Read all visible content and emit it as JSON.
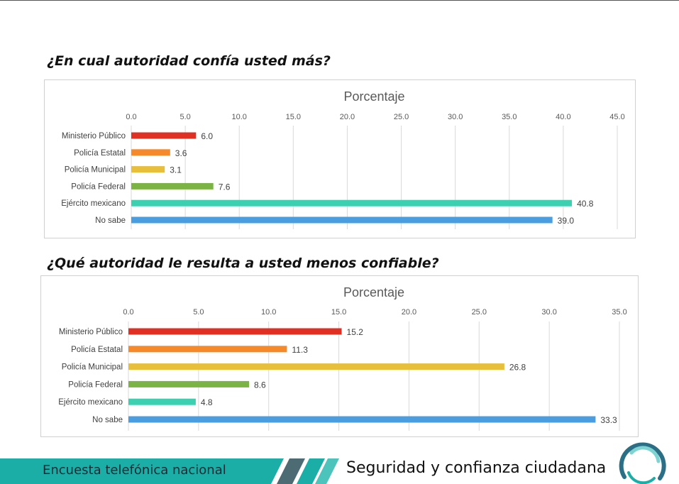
{
  "chart_data": [
    {
      "type": "bar",
      "orientation": "horizontal",
      "question": "¿En cual autoridad confía usted más?",
      "title": "Porcentaje",
      "categories": [
        "Ministerio Público",
        "Policía Estatal",
        "Policía Municipal",
        "Policía Federal",
        "Ejército mexicano",
        "No sabe"
      ],
      "values": [
        6.0,
        3.6,
        3.1,
        7.6,
        40.8,
        39.0
      ],
      "value_labels": [
        "6.0",
        "3.6",
        "3.1",
        "7.6",
        "40.8",
        "39.0"
      ],
      "colors": [
        "#e03024",
        "#f68a2a",
        "#e8bf3b",
        "#7bb444",
        "#3ccfb0",
        "#4a9ee0"
      ],
      "xlim": [
        0,
        45
      ],
      "ticks": [
        0,
        5,
        10,
        15,
        20,
        25,
        30,
        35,
        40,
        45
      ],
      "tick_labels": [
        "0.0",
        "5.0",
        "10.0",
        "15.0",
        "20.0",
        "25.0",
        "30.0",
        "35.0",
        "40.0",
        "45.0"
      ],
      "axis_position": "top",
      "grid": true,
      "legend": "none"
    },
    {
      "type": "bar",
      "orientation": "horizontal",
      "question": "¿Qué autoridad le resulta a usted menos confiable?",
      "title": "Porcentaje",
      "categories": [
        "Ministerio Público",
        "Policía Estatal",
        "Policía Municipal",
        "Policía Federal",
        "Ejército mexicano",
        "No sabe"
      ],
      "values": [
        15.2,
        11.3,
        26.8,
        8.6,
        4.8,
        33.3
      ],
      "value_labels": [
        "15.2",
        "11.3",
        "26.8",
        "8.6",
        "4.8",
        "33.3"
      ],
      "colors": [
        "#e03024",
        "#f68a2a",
        "#e8bf3b",
        "#7bb444",
        "#3ccfb0",
        "#4a9ee0"
      ],
      "xlim": [
        0,
        35
      ],
      "ticks": [
        0,
        5,
        10,
        15,
        20,
        25,
        30,
        35
      ],
      "tick_labels": [
        "0.0",
        "5.0",
        "10.0",
        "15.0",
        "20.0",
        "25.0",
        "30.0",
        "35.0"
      ],
      "axis_position": "top",
      "grid": true,
      "legend": "none"
    }
  ],
  "footer": {
    "left_text": "Encuesta telefónica nacional",
    "right_text": "Seguridad y confianza ciudadana",
    "bar_color": "#1aaea6"
  }
}
